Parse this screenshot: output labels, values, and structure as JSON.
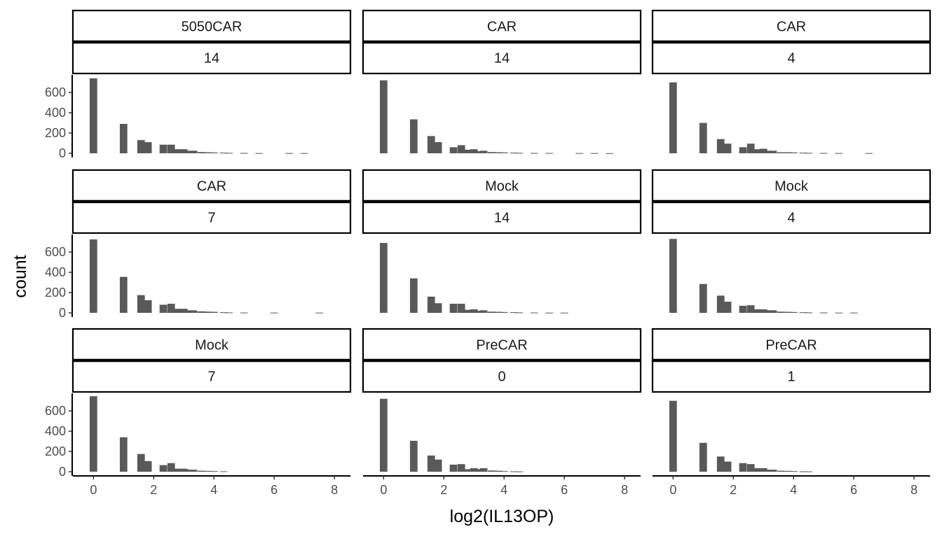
{
  "chart_data": {
    "type": "bar",
    "xlabel": "log2(IL13OP)",
    "ylabel": "count",
    "xlim": [
      -0.45,
      8.3
    ],
    "ylim": [
      0,
      760
    ],
    "x_ticks": [
      "0",
      "2",
      "4",
      "6",
      "8"
    ],
    "y_ticks": [
      "0",
      "200",
      "400",
      "600"
    ],
    "x_tick_values": [
      0,
      2,
      4,
      6,
      8
    ],
    "y_tick_values": [
      0,
      200,
      400,
      600
    ],
    "bar_color": "#595959",
    "bin_width": 0.25,
    "panels": [
      {
        "group": "5050CAR",
        "day": "14",
        "bins": [
          [
            0,
            740
          ],
          [
            1,
            290
          ],
          [
            1.58,
            130
          ],
          [
            1.81,
            110
          ],
          [
            2.32,
            85
          ],
          [
            2.58,
            85
          ],
          [
            2.81,
            40
          ],
          [
            3.0,
            40
          ],
          [
            3.17,
            25
          ],
          [
            3.32,
            25
          ],
          [
            3.58,
            12
          ],
          [
            3.81,
            10
          ],
          [
            4.0,
            8
          ],
          [
            4.32,
            6
          ],
          [
            4.5,
            4
          ],
          [
            5.0,
            3
          ],
          [
            5.5,
            2
          ],
          [
            6.5,
            2
          ],
          [
            7.0,
            2
          ]
        ]
      },
      {
        "group": "CAR",
        "day": "14",
        "bins": [
          [
            0,
            720
          ],
          [
            1,
            335
          ],
          [
            1.58,
            170
          ],
          [
            1.81,
            110
          ],
          [
            2.32,
            60
          ],
          [
            2.58,
            80
          ],
          [
            2.81,
            35
          ],
          [
            3.0,
            40
          ],
          [
            3.17,
            20
          ],
          [
            3.32,
            25
          ],
          [
            3.58,
            12
          ],
          [
            3.81,
            10
          ],
          [
            4.0,
            8
          ],
          [
            4.32,
            6
          ],
          [
            4.5,
            4
          ],
          [
            5.0,
            3
          ],
          [
            5.5,
            3
          ],
          [
            6.5,
            2
          ],
          [
            7.0,
            2
          ],
          [
            7.5,
            1
          ]
        ]
      },
      {
        "group": "CAR",
        "day": "4",
        "bins": [
          [
            0,
            700
          ],
          [
            1,
            300
          ],
          [
            1.58,
            140
          ],
          [
            1.81,
            95
          ],
          [
            2.32,
            60
          ],
          [
            2.58,
            95
          ],
          [
            2.81,
            40
          ],
          [
            3.0,
            45
          ],
          [
            3.17,
            25
          ],
          [
            3.32,
            25
          ],
          [
            3.58,
            10
          ],
          [
            3.81,
            10
          ],
          [
            4.0,
            8
          ],
          [
            4.32,
            6
          ],
          [
            4.5,
            4
          ],
          [
            5.0,
            3
          ],
          [
            5.5,
            2
          ],
          [
            6.5,
            2
          ]
        ]
      },
      {
        "group": "CAR",
        "day": "7",
        "bins": [
          [
            0,
            725
          ],
          [
            1,
            355
          ],
          [
            1.58,
            175
          ],
          [
            1.81,
            125
          ],
          [
            2.32,
            80
          ],
          [
            2.58,
            90
          ],
          [
            2.81,
            40
          ],
          [
            3.0,
            40
          ],
          [
            3.17,
            25
          ],
          [
            3.32,
            25
          ],
          [
            3.58,
            15
          ],
          [
            3.81,
            12
          ],
          [
            4.0,
            10
          ],
          [
            4.32,
            6
          ],
          [
            4.5,
            4
          ],
          [
            5.0,
            3
          ],
          [
            6.0,
            2
          ],
          [
            7.5,
            2
          ]
        ]
      },
      {
        "group": "Mock",
        "day": "14",
        "bins": [
          [
            0,
            690
          ],
          [
            1,
            340
          ],
          [
            1.58,
            160
          ],
          [
            1.81,
            95
          ],
          [
            2.32,
            90
          ],
          [
            2.58,
            90
          ],
          [
            2.81,
            30
          ],
          [
            3.0,
            35
          ],
          [
            3.17,
            20
          ],
          [
            3.32,
            25
          ],
          [
            3.58,
            12
          ],
          [
            3.81,
            10
          ],
          [
            4.0,
            8
          ],
          [
            4.32,
            6
          ],
          [
            4.5,
            4
          ],
          [
            5.0,
            3
          ],
          [
            5.5,
            2
          ],
          [
            6.0,
            2
          ]
        ]
      },
      {
        "group": "Mock",
        "day": "4",
        "bins": [
          [
            0,
            730
          ],
          [
            1,
            285
          ],
          [
            1.58,
            170
          ],
          [
            1.81,
            110
          ],
          [
            2.32,
            70
          ],
          [
            2.58,
            75
          ],
          [
            2.81,
            35
          ],
          [
            3.0,
            35
          ],
          [
            3.17,
            25
          ],
          [
            3.32,
            25
          ],
          [
            3.58,
            12
          ],
          [
            3.81,
            10
          ],
          [
            4.0,
            8
          ],
          [
            4.32,
            6
          ],
          [
            4.5,
            4
          ],
          [
            5.0,
            3
          ],
          [
            5.5,
            2
          ],
          [
            6.0,
            2
          ]
        ]
      },
      {
        "group": "Mock",
        "day": "7",
        "bins": [
          [
            0,
            745
          ],
          [
            1,
            340
          ],
          [
            1.58,
            175
          ],
          [
            1.81,
            105
          ],
          [
            2.32,
            65
          ],
          [
            2.58,
            85
          ],
          [
            2.81,
            30
          ],
          [
            3.0,
            30
          ],
          [
            3.17,
            20
          ],
          [
            3.32,
            20
          ],
          [
            3.58,
            10
          ],
          [
            3.81,
            8
          ],
          [
            4.0,
            6
          ],
          [
            4.32,
            4
          ]
        ]
      },
      {
        "group": "PreCAR",
        "day": "0",
        "bins": [
          [
            0,
            720
          ],
          [
            1,
            305
          ],
          [
            1.58,
            160
          ],
          [
            1.81,
            120
          ],
          [
            2.32,
            70
          ],
          [
            2.58,
            75
          ],
          [
            2.81,
            25
          ],
          [
            3.0,
            35
          ],
          [
            3.17,
            25
          ],
          [
            3.32,
            35
          ],
          [
            3.58,
            12
          ],
          [
            3.81,
            10
          ],
          [
            4.0,
            6
          ],
          [
            4.32,
            4
          ],
          [
            4.5,
            3
          ]
        ]
      },
      {
        "group": "PreCAR",
        "day": "1",
        "bins": [
          [
            0,
            700
          ],
          [
            1,
            285
          ],
          [
            1.58,
            150
          ],
          [
            1.81,
            100
          ],
          [
            2.32,
            85
          ],
          [
            2.58,
            75
          ],
          [
            2.81,
            35
          ],
          [
            3.0,
            35
          ],
          [
            3.17,
            20
          ],
          [
            3.32,
            20
          ],
          [
            3.58,
            10
          ],
          [
            3.81,
            8
          ],
          [
            4.0,
            6
          ],
          [
            4.32,
            4
          ],
          [
            4.5,
            3
          ]
        ]
      }
    ]
  }
}
